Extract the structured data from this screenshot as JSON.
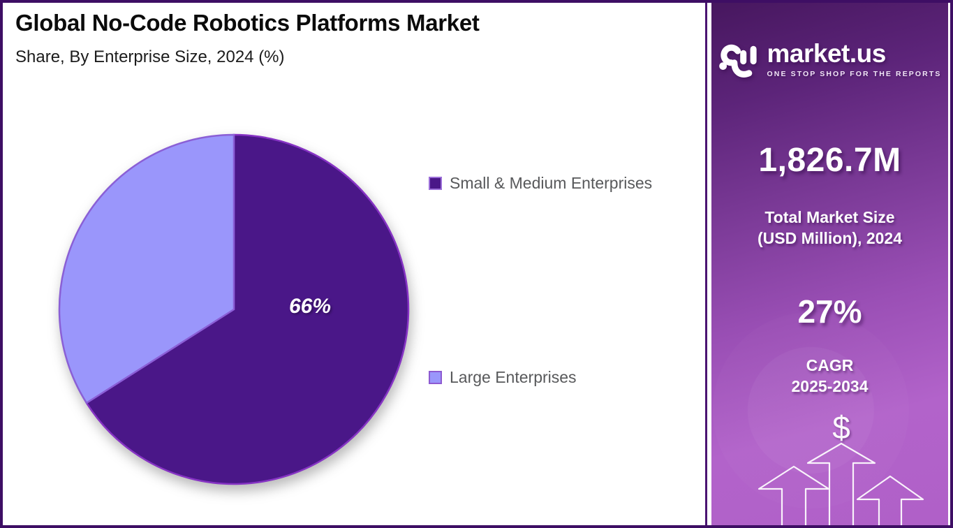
{
  "header": {
    "title": "Global No-Code Robotics Platforms Market",
    "subtitle": "Share, By Enterprise Size, 2024 (%)"
  },
  "chart_data": {
    "type": "pie",
    "title": "Global No-Code Robotics Platforms Market",
    "subtitle": "Share, By Enterprise Size, 2024 (%)",
    "labels": [
      "Small & Medium Enterprises",
      "Large Enterprises"
    ],
    "values": [
      66,
      34
    ],
    "colors": [
      "#4a1788",
      "#9a96fb"
    ],
    "slice_strokes": [
      "#8633c4",
      "#8a5fd6"
    ],
    "swatch_border_colors": [
      "#9c6fd9",
      "#8d5ad1"
    ],
    "shown_value_label": "66%",
    "start_angle_deg": 0,
    "direction": "clockwise",
    "legend_position": "right"
  },
  "sidebar": {
    "logo_text": "market.us",
    "logo_tagline": "ONE STOP SHOP FOR THE REPORTS",
    "market_size_value": "1,826.7M",
    "market_size_label_line1": "Total Market Size",
    "market_size_label_line2": "(USD Million), 2024",
    "cagr_value": "27%",
    "cagr_label_line1": "CAGR",
    "cagr_label_line2": "2025-2034",
    "dollar_symbol": "$"
  }
}
